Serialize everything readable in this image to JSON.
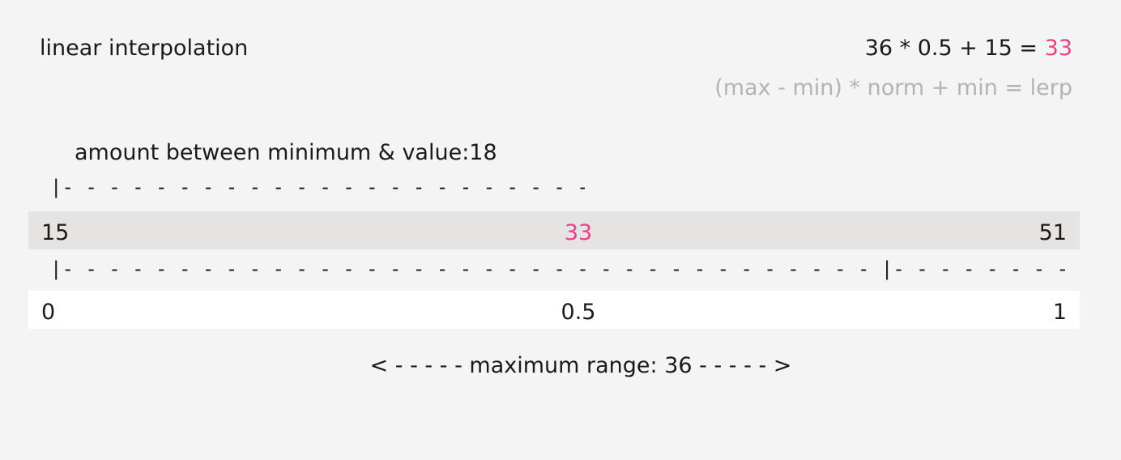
{
  "title": "linear interpolation",
  "equation": {
    "expression": "36 * 0.5 + 15 = ",
    "result": "33"
  },
  "formula": "(max - min) * norm + min = lerp",
  "amount_label": "amount between minimum & value:18",
  "top_bracket": "|- - - - - - - - - - - - - - - - - - - - - - - - - - - - - - - - - - - |",
  "bottom_bracket": "|- - - - - - - - - - - - - - - - - - - - - - - - - - - - - - - - - - - |- - - - - - - - - - - - - - - - - - - - - - - - - - - - - - - - - - - -|",
  "value_row": {
    "min": "15",
    "value": "33",
    "max": "51"
  },
  "norm_row": {
    "start": "0",
    "mid": "0.5",
    "end": "1"
  },
  "range_label": "< - - - - - maximum range: 36 - - - - - >",
  "colors": {
    "background": "#f4f4f4",
    "accent": "#e8418a",
    "muted_text": "#b3b3b3",
    "value_band": "#e5e4e2",
    "norm_band": "#ffffff"
  }
}
